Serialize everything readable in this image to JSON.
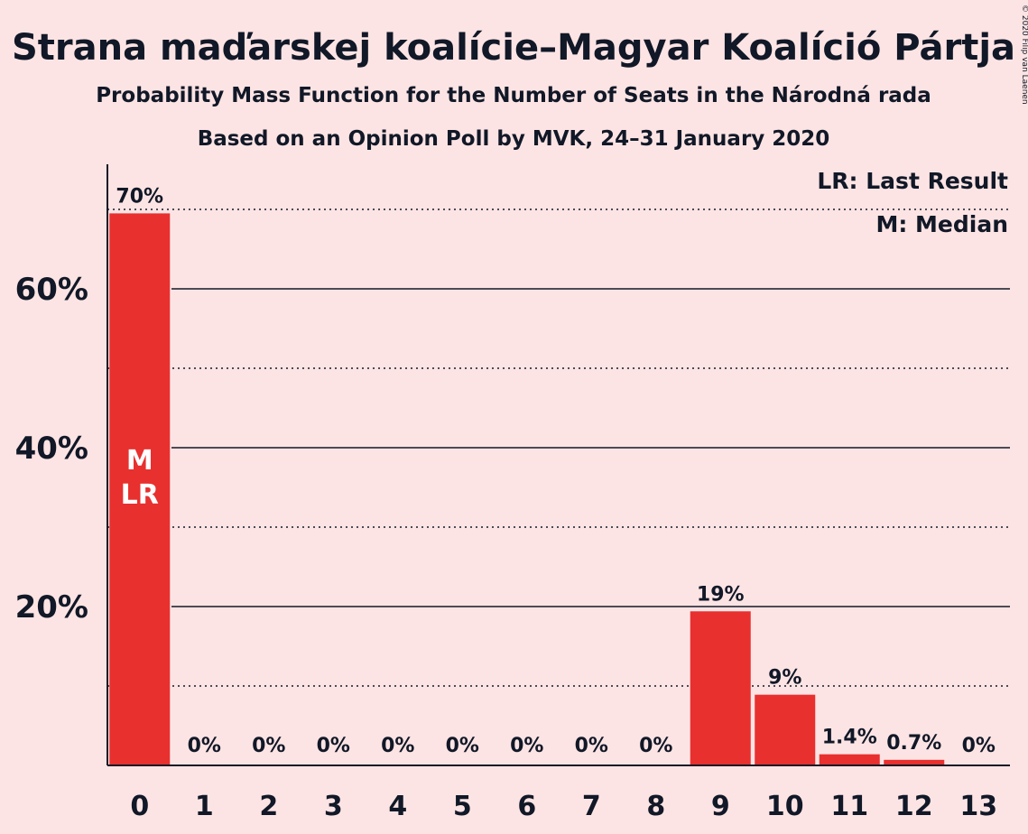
{
  "title": "Strana maďarskej koalície–Magyar Koalíció Pártja",
  "subtitle1": "Probability Mass Function for the Number of Seats in the Národná rada",
  "subtitle2": "Based on an Opinion Poll by MVK, 24–31 January 2020",
  "legend": {
    "last_result": "LR: Last Result",
    "median": "M: Median"
  },
  "copyright": "© 2020 Filip van Laenen",
  "colors": {
    "background": "#fde4e4",
    "bar": "#e8302f",
    "text": "#111827"
  },
  "chart_data": {
    "type": "bar",
    "categories": [
      "0",
      "1",
      "2",
      "3",
      "4",
      "5",
      "6",
      "7",
      "8",
      "9",
      "10",
      "11",
      "12",
      "13"
    ],
    "values": [
      69.5,
      0,
      0,
      0,
      0,
      0,
      0,
      0,
      0,
      19.4,
      8.9,
      1.4,
      0.7,
      0
    ],
    "labels": [
      "70%",
      "0%",
      "0%",
      "0%",
      "0%",
      "0%",
      "0%",
      "0%",
      "0%",
      "19%",
      "9%",
      "1.4%",
      "0.7%",
      "0%"
    ],
    "yticks": [
      {
        "value": 20,
        "label": "20%"
      },
      {
        "value": 40,
        "label": "40%"
      },
      {
        "value": 60,
        "label": "60%"
      }
    ],
    "minor_gridlines": [
      10,
      30,
      50,
      70
    ],
    "ylim": [
      0,
      75
    ],
    "grid": true,
    "legend_placement": "top-right",
    "bar_annotations": [
      {
        "category": "0",
        "lines": [
          "M",
          "LR"
        ]
      }
    ]
  }
}
